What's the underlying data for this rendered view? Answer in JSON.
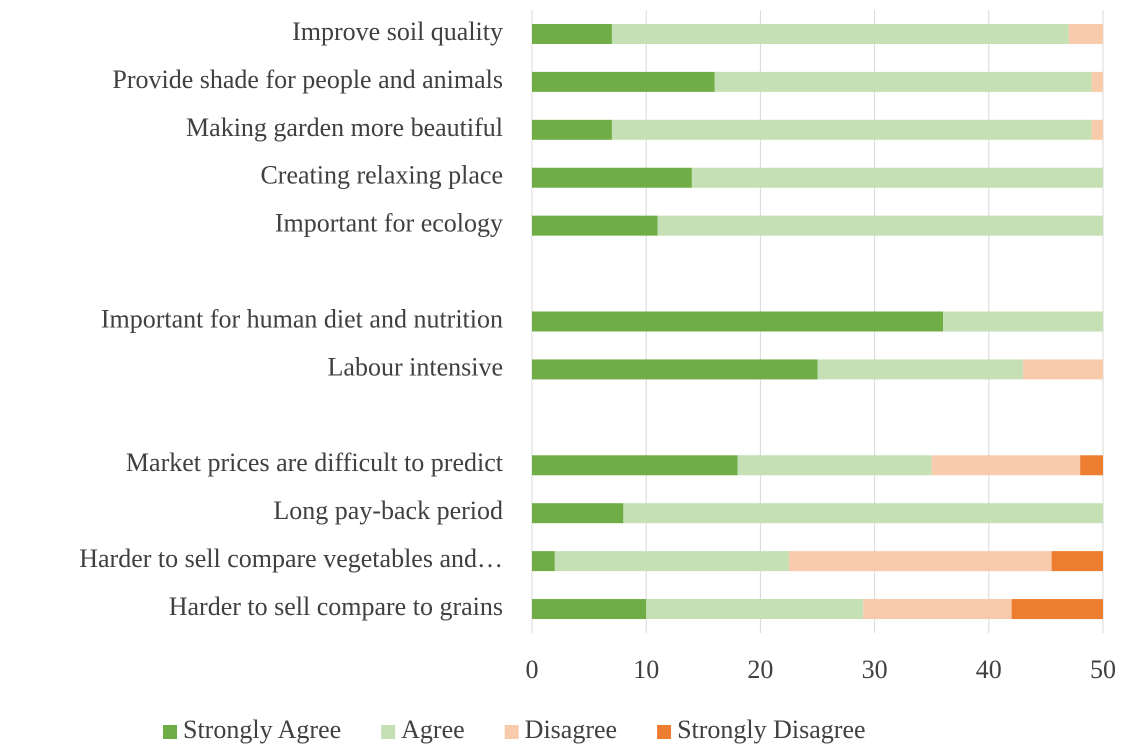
{
  "chart_data": {
    "type": "stacked-barh",
    "categories": [
      "Improve soil quality",
      "Provide shade for people and animals",
      "Making garden more beautiful",
      "Creating relaxing place",
      "Important for ecology",
      null,
      "Important for human diet and nutrition",
      "Labour intensive",
      null,
      "Market prices are difficult to predict",
      "Long pay-back period",
      "Harder to sell compare vegetables and…",
      "Harder to sell compare to grains"
    ],
    "series": [
      {
        "name": "Strongly Agree",
        "color": "#70ad47",
        "values": [
          7,
          16,
          7,
          14,
          11,
          null,
          36,
          25,
          null,
          18,
          8,
          2,
          10
        ]
      },
      {
        "name": "Agree",
        "color": "#c5e0b4",
        "values": [
          40,
          33,
          42,
          36,
          39,
          null,
          14,
          18,
          null,
          17,
          42,
          20.5,
          19
        ]
      },
      {
        "name": "Disagree",
        "color": "#f8cbad",
        "values": [
          3,
          1,
          1,
          0,
          0,
          null,
          0,
          7,
          null,
          13,
          0,
          23,
          13
        ]
      },
      {
        "name": "Strongly Disagree",
        "color": "#ed7d31",
        "values": [
          0,
          0,
          0,
          0,
          0,
          null,
          0,
          0,
          null,
          2,
          0,
          4.5,
          8
        ]
      }
    ],
    "xlim": [
      0,
      50
    ],
    "xticks": [
      0,
      10,
      20,
      30,
      40,
      50
    ],
    "grid": true,
    "legend": "bottom"
  }
}
